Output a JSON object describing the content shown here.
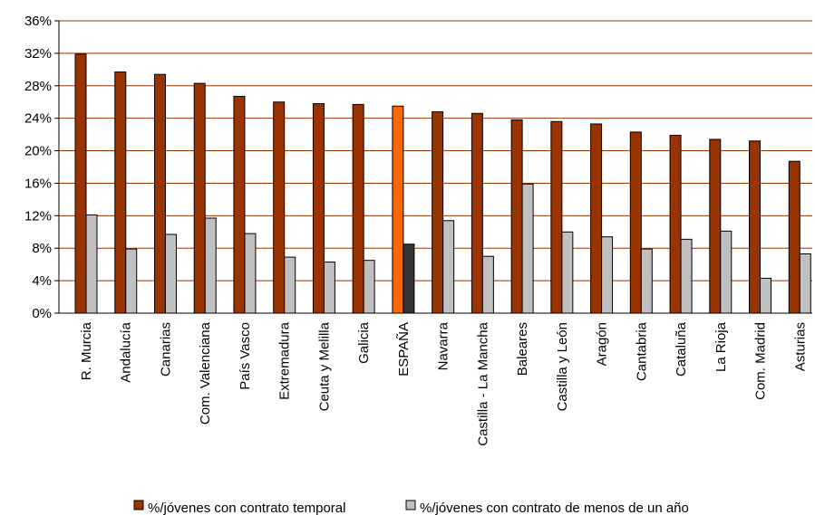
{
  "chart_data": {
    "type": "bar",
    "categories": [
      "R. Murcia",
      "Andalucía",
      "Canarias",
      "Com. Valenciana",
      "País Vasco",
      "Extremadura",
      "Ceuta y Melilla",
      "Galicia",
      "ESPAÑA",
      "Navarra",
      "Castilla - La Mancha",
      "Baleares",
      "Castilla y León",
      "Aragón",
      "Cantabria",
      "Cataluña",
      "La Rioja",
      "Com. Madrid",
      "Asturias"
    ],
    "series": [
      {
        "name": "%/jóvenes con contrato temporal",
        "values": [
          31.9,
          29.7,
          29.4,
          28.3,
          26.7,
          26.0,
          25.8,
          25.7,
          25.5,
          24.8,
          24.6,
          23.8,
          23.6,
          23.3,
          22.3,
          21.9,
          21.4,
          21.2,
          18.7
        ],
        "color": "#993300",
        "highlight_color": "#FF6600"
      },
      {
        "name": "%/jóvenes con contrato de menos de un año",
        "values": [
          12.1,
          7.9,
          9.7,
          11.7,
          9.8,
          6.9,
          6.3,
          6.5,
          8.5,
          11.4,
          7.0,
          15.9,
          10.0,
          9.4,
          7.9,
          9.1,
          10.1,
          4.3,
          7.3
        ],
        "color": "#C0C0C0",
        "highlight_color": "#333333"
      }
    ],
    "highlight_category": "ESPAÑA",
    "ylim": [
      0,
      36
    ],
    "yticks": [
      "0%",
      "4%",
      "8%",
      "12%",
      "16%",
      "20%",
      "24%",
      "28%",
      "32%",
      "36%"
    ],
    "grid": true,
    "legend_position": "bottom"
  }
}
